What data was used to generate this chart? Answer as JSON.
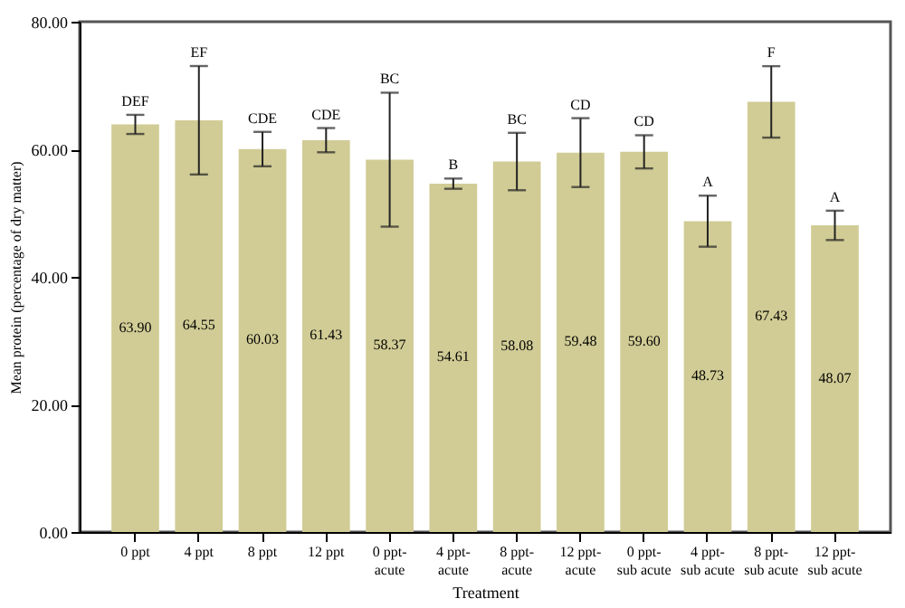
{
  "chart_data": {
    "type": "bar",
    "xlabel": "Treatment",
    "ylabel": "Mean protein (percentage of dry matter)",
    "categories": [
      "0 ppt",
      "4 ppt",
      "8 ppt",
      "12 ppt",
      "0 ppt-acute",
      "4 ppt-acute",
      "8 ppt-acute",
      "12 ppt-acute",
      "0 ppt-sub acute",
      "4 ppt-sub acute",
      "8 ppt-sub acute",
      "12 ppt-sub acute"
    ],
    "values": [
      63.9,
      64.55,
      60.03,
      61.43,
      58.37,
      54.61,
      58.08,
      59.48,
      59.6,
      48.73,
      67.43,
      48.07
    ],
    "errors": [
      1.5,
      8.5,
      2.7,
      1.9,
      10.5,
      0.8,
      4.5,
      5.4,
      2.6,
      4,
      5.6,
      2.3
    ],
    "value_labels": [
      "63.90",
      "64.55",
      "60.03",
      "61.43",
      "58.37",
      "54.61",
      "58.08",
      "59.48",
      "59.60",
      "48.73",
      "67.43",
      "48.07"
    ],
    "color": "#d1cc95",
    "grid": false,
    "ylim": [
      0,
      80
    ],
    "yticks": [
      {
        "value": 0,
        "label": "0.00"
      },
      {
        "value": 20,
        "label": "20.00"
      },
      {
        "value": 40,
        "label": "40.00"
      },
      {
        "value": 60,
        "label": "60.00"
      },
      {
        "value": 80,
        "label": "80.00"
      }
    ],
    "annotations": [
      {
        "text": "DEF",
        "x": "0 ppt",
        "y": 65.4
      },
      {
        "text": "EF",
        "x": "4 ppt",
        "y": 73.05
      },
      {
        "text": "CDE",
        "x": "8 ppt",
        "y": 62.73
      },
      {
        "text": "CDE",
        "x": "12 ppt",
        "y": 63.33
      },
      {
        "text": "BC",
        "x": "0 ppt-acute",
        "y": 68.87
      },
      {
        "text": "B",
        "x": "4 ppt-acute",
        "y": 55.41
      },
      {
        "text": "BC",
        "x": "8 ppt-acute",
        "y": 62.58
      },
      {
        "text": "CD",
        "x": "12 ppt-acute",
        "y": 64.88
      },
      {
        "text": "CD",
        "x": "0 ppt-sub acute",
        "y": 62.2
      },
      {
        "text": "A",
        "x": "4 ppt-sub acute",
        "y": 52.73
      },
      {
        "text": "F",
        "x": "8 ppt-sub acute",
        "y": 73.03
      },
      {
        "text": "A",
        "x": "12 ppt-sub acute",
        "y": 50.37
      }
    ]
  }
}
